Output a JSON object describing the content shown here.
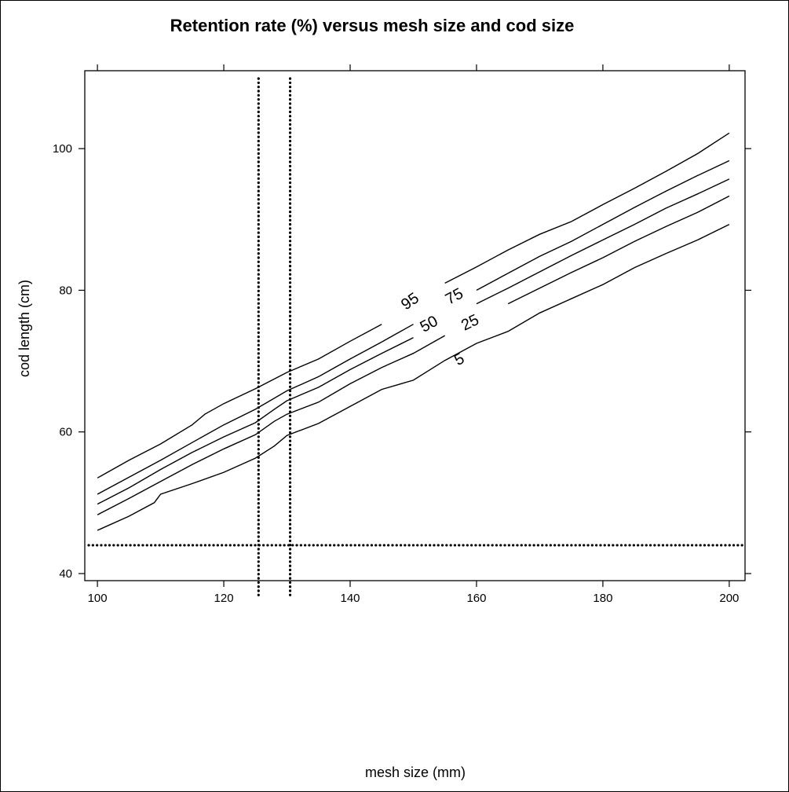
{
  "chart_data": {
    "type": "line",
    "title": "Retention rate (%) versus mesh size and cod size",
    "xlabel": "mesh size (mm)",
    "ylabel": "cod length (cm)",
    "xlim": [
      98,
      202.5
    ],
    "ylim": [
      39,
      111
    ],
    "x_ticks": [
      100,
      120,
      140,
      160,
      180,
      200
    ],
    "y_ticks": [
      40,
      60,
      80,
      100
    ],
    "x_tick_labels": [
      "100",
      "120",
      "140",
      "160",
      "180",
      "200"
    ],
    "y_tick_labels": [
      "40",
      "60",
      "80",
      "100"
    ],
    "grid": false,
    "legend": "none",
    "series": [
      {
        "name": "95",
        "label_at": {
          "x": 149.5,
          "y": 78.4
        },
        "points": [
          [
            100,
            53.5
          ],
          [
            105,
            56
          ],
          [
            110,
            58.3
          ],
          [
            115,
            61
          ],
          [
            117,
            62.5
          ],
          [
            120,
            64
          ],
          [
            125,
            66.1
          ],
          [
            130,
            68.4
          ],
          [
            135,
            70.3
          ],
          [
            140,
            72.8
          ],
          [
            145,
            75.2
          ],
          [
            150,
            78.3
          ],
          [
            155,
            81
          ],
          [
            160,
            83.3
          ],
          [
            165,
            85.7
          ],
          [
            170,
            87.9
          ],
          [
            175,
            89.7
          ],
          [
            180,
            92.1
          ],
          [
            185,
            94.4
          ],
          [
            190,
            96.8
          ],
          [
            195,
            99.3
          ],
          [
            200,
            102.2
          ]
        ]
      },
      {
        "name": "75",
        "label_at": {
          "x": 156.5,
          "y": 79.1
        },
        "points": [
          [
            100,
            51.2
          ],
          [
            105,
            53.6
          ],
          [
            110,
            56
          ],
          [
            115,
            58.5
          ],
          [
            120,
            61
          ],
          [
            125,
            63.2
          ],
          [
            130,
            65.8
          ],
          [
            135,
            67.8
          ],
          [
            140,
            70.3
          ],
          [
            145,
            72.7
          ],
          [
            150,
            75.2
          ],
          [
            155,
            77.6
          ],
          [
            160,
            80
          ],
          [
            165,
            82.4
          ],
          [
            170,
            84.8
          ],
          [
            175,
            86.9
          ],
          [
            180,
            89.3
          ],
          [
            185,
            91.7
          ],
          [
            190,
            94
          ],
          [
            195,
            96.2
          ],
          [
            200,
            98.3
          ]
        ]
      },
      {
        "name": "50",
        "label_at": {
          "x": 152.5,
          "y": 75.2
        },
        "points": [
          [
            100,
            49.8
          ],
          [
            105,
            52.1
          ],
          [
            110,
            54.7
          ],
          [
            115,
            57.1
          ],
          [
            120,
            59.3
          ],
          [
            125,
            61.3
          ],
          [
            128,
            63.2
          ],
          [
            130,
            64.4
          ],
          [
            135,
            66.3
          ],
          [
            140,
            68.8
          ],
          [
            145,
            71.1
          ],
          [
            150,
            73.3
          ],
          [
            155,
            75.7
          ],
          [
            160,
            78.1
          ],
          [
            165,
            80.3
          ],
          [
            170,
            82.6
          ],
          [
            175,
            84.9
          ],
          [
            180,
            87.1
          ],
          [
            185,
            89.3
          ],
          [
            190,
            91.6
          ],
          [
            195,
            93.6
          ],
          [
            200,
            95.7
          ]
        ]
      },
      {
        "name": "25",
        "label_at": {
          "x": 159,
          "y": 75.4
        },
        "points": [
          [
            100,
            48.3
          ],
          [
            105,
            50.6
          ],
          [
            110,
            53
          ],
          [
            115,
            55.4
          ],
          [
            120,
            57.6
          ],
          [
            125,
            59.6
          ],
          [
            128,
            61.5
          ],
          [
            130,
            62.5
          ],
          [
            135,
            64.2
          ],
          [
            140,
            66.8
          ],
          [
            145,
            69.1
          ],
          [
            150,
            71.1
          ],
          [
            155,
            73.6
          ],
          [
            160,
            75.8
          ],
          [
            165,
            78.1
          ],
          [
            170,
            80.3
          ],
          [
            175,
            82.5
          ],
          [
            180,
            84.6
          ],
          [
            185,
            86.9
          ],
          [
            190,
            89
          ],
          [
            195,
            91
          ],
          [
            200,
            93.3
          ]
        ]
      },
      {
        "name": "5",
        "label_at": {
          "x": 157.3,
          "y": 70.2
        },
        "points": [
          [
            100,
            46.1
          ],
          [
            105,
            48.1
          ],
          [
            109,
            50
          ],
          [
            110,
            51.2
          ],
          [
            115,
            52.7
          ],
          [
            120,
            54.3
          ],
          [
            125,
            56.3
          ],
          [
            128,
            58
          ],
          [
            130,
            59.5
          ],
          [
            135,
            61.2
          ],
          [
            140,
            63.6
          ],
          [
            145,
            66
          ],
          [
            150,
            67.3
          ],
          [
            155,
            70.1
          ],
          [
            160,
            72.5
          ],
          [
            165,
            74.2
          ],
          [
            170,
            76.8
          ],
          [
            175,
            78.8
          ],
          [
            180,
            80.8
          ],
          [
            185,
            83.2
          ],
          [
            190,
            85.2
          ],
          [
            195,
            87.1
          ],
          [
            200,
            89.3
          ]
        ]
      }
    ],
    "reference_lines": [
      {
        "orientation": "vertical",
        "x": 125.5,
        "style": "dotted"
      },
      {
        "orientation": "vertical",
        "x": 130.5,
        "style": "dotted"
      },
      {
        "orientation": "horizontal",
        "y": 44,
        "style": "dotted"
      }
    ],
    "colors": {
      "line": "#000000",
      "background": "#ffffff"
    }
  }
}
